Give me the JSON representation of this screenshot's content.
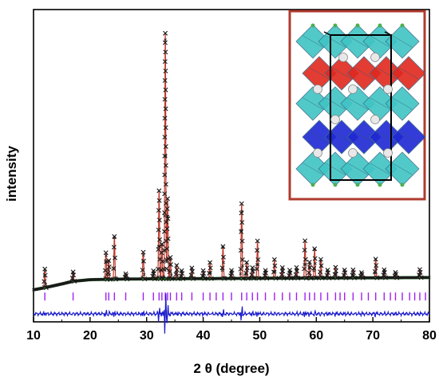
{
  "chart_data": {
    "type": "scatter",
    "xlabel": "2 θ (degree)",
    "ylabel": "intensity",
    "xlim": [
      10,
      80
    ],
    "ylim": [
      -0.12,
      1.05
    ],
    "x_ticks": [
      "10",
      "20",
      "30",
      "40",
      "50",
      "60",
      "70",
      "80"
    ],
    "grid": false,
    "legend": "none",
    "inset": "crystal-structure",
    "background": {
      "x": [
        10,
        12,
        15,
        17,
        20,
        25,
        30,
        40,
        50,
        60,
        70,
        80
      ],
      "y": [
        0.0,
        0.008,
        0.022,
        0.032,
        0.038,
        0.04,
        0.041,
        0.042,
        0.043,
        0.044,
        0.045,
        0.046
      ]
    },
    "peaks": [
      {
        "pos": 12.0,
        "h": 0.07
      },
      {
        "pos": 17.0,
        "h": 0.035
      },
      {
        "pos": 22.8,
        "h": 0.1
      },
      {
        "pos": 23.3,
        "h": 0.07
      },
      {
        "pos": 24.3,
        "h": 0.16
      },
      {
        "pos": 26.3,
        "h": 0.02
      },
      {
        "pos": 29.4,
        "h": 0.1
      },
      {
        "pos": 31.2,
        "h": 0.03
      },
      {
        "pos": 32.2,
        "h": 0.33
      },
      {
        "pos": 32.7,
        "h": 0.13
      },
      {
        "pos": 33.3,
        "h": 0.92
      },
      {
        "pos": 33.7,
        "h": 0.3
      },
      {
        "pos": 34.2,
        "h": 0.08
      },
      {
        "pos": 35.3,
        "h": 0.05
      },
      {
        "pos": 36.2,
        "h": 0.03
      },
      {
        "pos": 38.0,
        "h": 0.04
      },
      {
        "pos": 40.0,
        "h": 0.03
      },
      {
        "pos": 41.2,
        "h": 0.06
      },
      {
        "pos": 43.5,
        "h": 0.12
      },
      {
        "pos": 45.0,
        "h": 0.03
      },
      {
        "pos": 46.8,
        "h": 0.28
      },
      {
        "pos": 47.7,
        "h": 0.06
      },
      {
        "pos": 48.7,
        "h": 0.04
      },
      {
        "pos": 49.6,
        "h": 0.14
      },
      {
        "pos": 51.0,
        "h": 0.03
      },
      {
        "pos": 52.6,
        "h": 0.07
      },
      {
        "pos": 54.0,
        "h": 0.04
      },
      {
        "pos": 55.3,
        "h": 0.03
      },
      {
        "pos": 56.5,
        "h": 0.04
      },
      {
        "pos": 58.0,
        "h": 0.14
      },
      {
        "pos": 58.8,
        "h": 0.06
      },
      {
        "pos": 59.7,
        "h": 0.11
      },
      {
        "pos": 60.8,
        "h": 0.07
      },
      {
        "pos": 62.0,
        "h": 0.03
      },
      {
        "pos": 63.4,
        "h": 0.04
      },
      {
        "pos": 65.0,
        "h": 0.03
      },
      {
        "pos": 66.5,
        "h": 0.03
      },
      {
        "pos": 68.0,
        "h": 0.02
      },
      {
        "pos": 70.5,
        "h": 0.07
      },
      {
        "pos": 72.0,
        "h": 0.03
      },
      {
        "pos": 74.0,
        "h": 0.02
      },
      {
        "pos": 78.3,
        "h": 0.03
      }
    ],
    "bragg_ticks": [
      12.0,
      17.0,
      22.8,
      23.3,
      24.3,
      26.3,
      29.4,
      31.2,
      32.2,
      32.7,
      33.3,
      33.7,
      34.2,
      35.3,
      36.2,
      38.0,
      40.0,
      41.2,
      42.3,
      43.5,
      45.0,
      46.8,
      47.7,
      48.7,
      49.6,
      51.0,
      52.6,
      54.0,
      55.3,
      56.5,
      58.0,
      58.8,
      59.7,
      60.8,
      62.0,
      63.4,
      64.2,
      65.0,
      66.5,
      68.0,
      69.2,
      70.5,
      72.0,
      73.1,
      74.0,
      75.2,
      76.5,
      77.4,
      78.3,
      79.3
    ],
    "bragg_level": -0.025,
    "difference_baseline": -0.09,
    "colors": {
      "observed": "#1a1a1a",
      "calculated": "#c0392b",
      "background": "#2e8b2e",
      "bragg": "#a020f0",
      "difference": "#1a1acc",
      "inset_frame": "#b03a2e",
      "octahedra_cyan": "#40c4c4",
      "octahedra_red": "#e0281e",
      "octahedra_blue": "#1e28d2"
    }
  }
}
